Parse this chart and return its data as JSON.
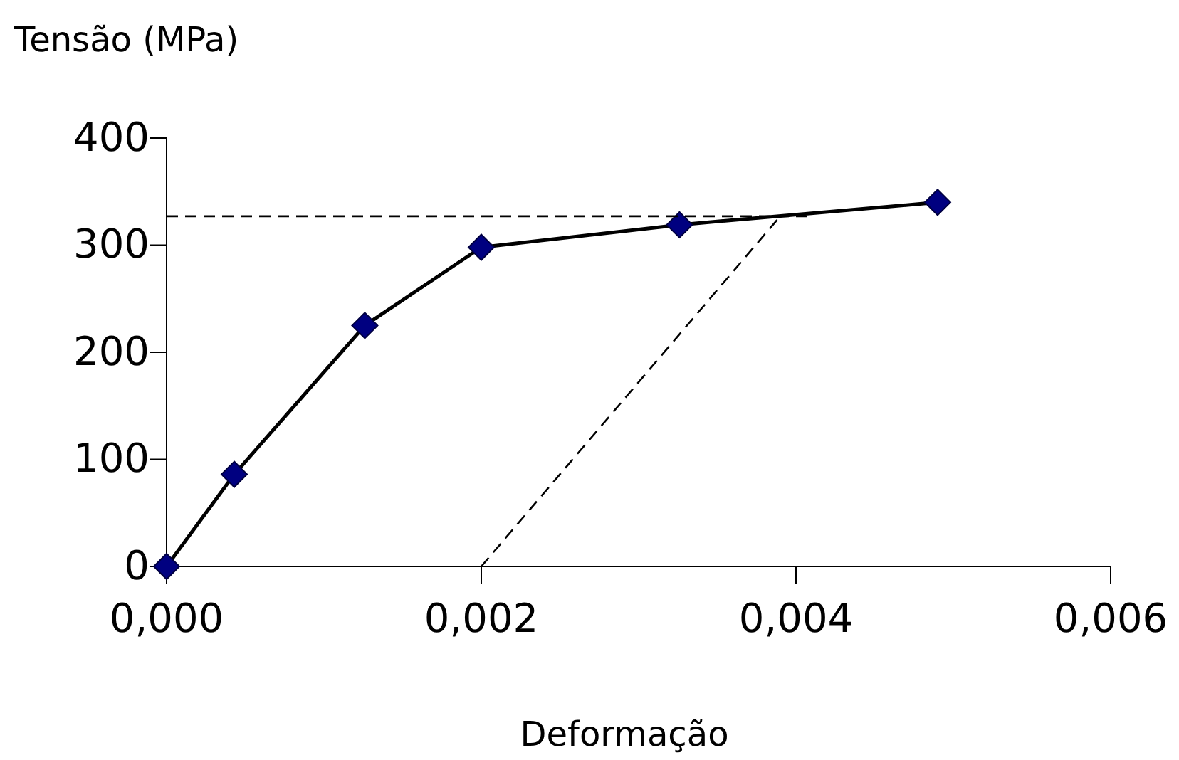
{
  "chart_data": {
    "type": "line",
    "xlabel": "Deformação",
    "ylabel": "Tensão (MPa)",
    "xlim": [
      0,
      0.006
    ],
    "xticks": [
      {
        "value": 0,
        "label": "0,000"
      },
      {
        "value": 0.002,
        "label": "0,002"
      },
      {
        "value": 0.004,
        "label": "0,004"
      },
      {
        "value": 0.006,
        "label": "0,006"
      }
    ],
    "ylim": [
      0,
      400
    ],
    "yticks": [
      0,
      100,
      200,
      300,
      400
    ],
    "grid": false,
    "series": [
      {
        "color": "#000000",
        "marker": "diamond",
        "line_style": "solid",
        "x": [
          0,
          0.00043,
          0.00126,
          0.002,
          0.00326,
          0.0049
        ],
        "values": [
          0,
          86,
          225,
          298,
          319,
          340
        ]
      },
      {
        "color": "#000000",
        "marker": "none",
        "line_style": "dashed",
        "x": [
          0,
          0.0041
        ],
        "values": [
          327,
          327
        ]
      },
      {
        "color": "#000000",
        "marker": "none",
        "line_style": "dashed",
        "x": [
          0.002,
          0.0039
        ],
        "values": [
          0,
          327
        ]
      }
    ]
  }
}
